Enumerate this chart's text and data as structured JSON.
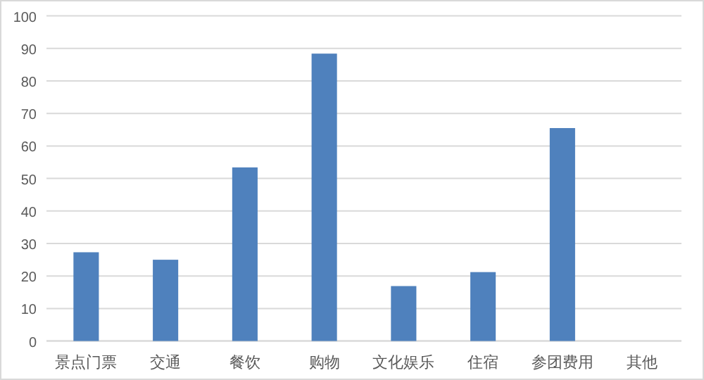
{
  "chart_data": {
    "type": "bar",
    "categories": [
      "景点门票",
      "交通",
      "餐饮",
      "购物",
      "文化娱乐",
      "住宿",
      "参团费用",
      "其他"
    ],
    "values": [
      27.3,
      25,
      53.4,
      88.4,
      16.9,
      21.2,
      65.5,
      0
    ],
    "color": "#4f81bd",
    "ylim": [
      0,
      100
    ],
    "yticks": [
      0,
      10,
      20,
      30,
      40,
      50,
      60,
      70,
      80,
      90,
      100
    ],
    "grid": "y"
  }
}
